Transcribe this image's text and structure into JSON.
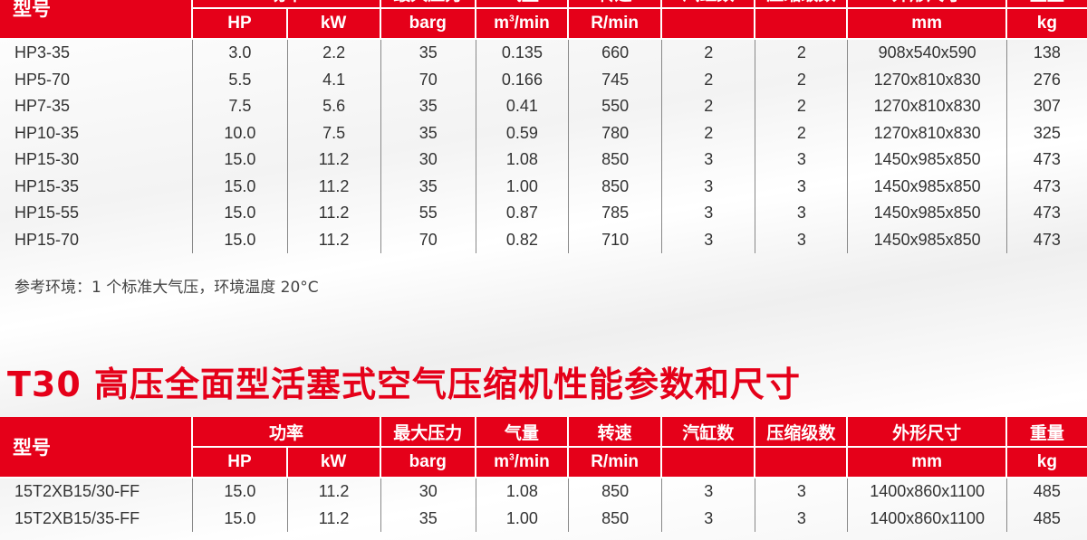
{
  "header": {
    "model": "型号",
    "power": "功率",
    "max_pressure": "最大压力",
    "air_flow": "气量",
    "speed": "转速",
    "cylinders": "汽缸数",
    "stages": "压缩级数",
    "dimensions": "外形尺寸",
    "weight": "重量",
    "units": {
      "hp": "HP",
      "kw": "kW",
      "barg": "barg",
      "flow_m": "m",
      "flow_sup": "3",
      "flow_rest": "/min",
      "rpm": "R/min",
      "mm": "mm",
      "kg": "kg"
    }
  },
  "table1": {
    "rows": [
      [
        "HP3-35",
        "3.0",
        "2.2",
        "35",
        "0.135",
        "660",
        "2",
        "2",
        "908x540x590",
        "138"
      ],
      [
        "HP5-70",
        "5.5",
        "4.1",
        "70",
        "0.166",
        "745",
        "2",
        "2",
        "1270x810x830",
        "276"
      ],
      [
        "HP7-35",
        "7.5",
        "5.6",
        "35",
        "0.41",
        "550",
        "2",
        "2",
        "1270x810x830",
        "307"
      ],
      [
        "HP10-35",
        "10.0",
        "7.5",
        "35",
        "0.59",
        "780",
        "2",
        "2",
        "1270x810x830",
        "325"
      ],
      [
        "HP15-30",
        "15.0",
        "11.2",
        "30",
        "1.08",
        "850",
        "3",
        "3",
        "1450x985x850",
        "473"
      ],
      [
        "HP15-35",
        "15.0",
        "11.2",
        "35",
        "1.00",
        "850",
        "3",
        "3",
        "1450x985x850",
        "473"
      ],
      [
        "HP15-55",
        "15.0",
        "11.2",
        "55",
        "0.87",
        "785",
        "3",
        "3",
        "1450x985x850",
        "473"
      ],
      [
        "HP15-70",
        "15.0",
        "11.2",
        "70",
        "0.82",
        "710",
        "3",
        "3",
        "1450x985x850",
        "473"
      ]
    ]
  },
  "note": "参考环境：1 个标准大气压，环境温度 20°C",
  "section_title": "T30 高压全面型活塞式空气压缩机性能参数和尺寸",
  "table2": {
    "rows": [
      [
        "15T2XB15/30-FF",
        "15.0",
        "11.2",
        "30",
        "1.08",
        "850",
        "3",
        "3",
        "1400x860x1100",
        "485"
      ],
      [
        "15T2XB15/35-FF",
        "15.0",
        "11.2",
        "35",
        "1.00",
        "850",
        "3",
        "3",
        "1400x860x1100",
        "485"
      ]
    ]
  },
  "colors": {
    "accent": "#e50019"
  }
}
